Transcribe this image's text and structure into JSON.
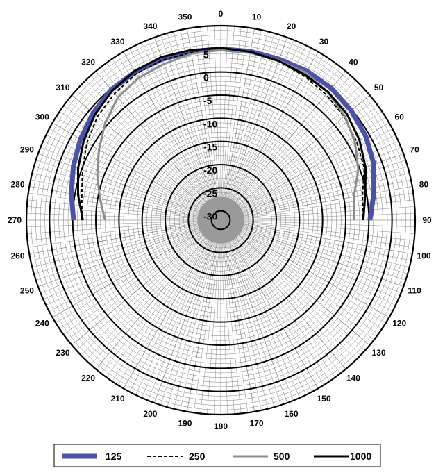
{
  "chart_data": {
    "type": "polar-line",
    "title": "",
    "angle_unit": "degrees",
    "angle_direction": "clockwise",
    "zero_at": "top",
    "angular_ticks": [
      "0",
      "10",
      "20",
      "30",
      "40",
      "50",
      "60",
      "70",
      "80",
      "90",
      "100",
      "110",
      "120",
      "130",
      "140",
      "150",
      "160",
      "170",
      "180",
      "190",
      "200",
      "210",
      "220",
      "230",
      "240",
      "250",
      "260",
      "270",
      "280",
      "290",
      "300",
      "310",
      "320",
      "330",
      "340",
      "350"
    ],
    "radial_ticks": [
      "5",
      "0",
      "-5",
      "-10",
      "-15",
      "-20",
      "-25",
      "-30"
    ],
    "radial_range": [
      -32,
      10
    ],
    "angular_grid_step": 2,
    "radial_grid_step": 1,
    "legend_position": "bottom",
    "series": [
      {
        "name": "125",
        "color": "#4c52a8",
        "style": "thick",
        "points": [
          [
            270,
            -0.2
          ],
          [
            280,
            0.8
          ],
          [
            290,
            1.9
          ],
          [
            300,
            3.0
          ],
          [
            310,
            4.0
          ],
          [
            320,
            4.8
          ],
          [
            330,
            5.0
          ],
          [
            340,
            5.0
          ],
          [
            350,
            5.0
          ],
          [
            0,
            5.0
          ],
          [
            10,
            5.0
          ],
          [
            20,
            5.0
          ],
          [
            30,
            5.2
          ],
          [
            40,
            5.2
          ],
          [
            50,
            4.8
          ],
          [
            60,
            4.2
          ],
          [
            70,
            3.2
          ],
          [
            80,
            1.6
          ],
          [
            90,
            0.2
          ]
        ]
      },
      {
        "name": "250",
        "color": "#000000",
        "style": "dashed",
        "points": [
          [
            270,
            -2.0
          ],
          [
            280,
            -1.5
          ],
          [
            290,
            -0.2
          ],
          [
            300,
            1.4
          ],
          [
            310,
            2.8
          ],
          [
            320,
            3.7
          ],
          [
            330,
            4.5
          ],
          [
            340,
            4.8
          ],
          [
            350,
            4.8
          ],
          [
            0,
            4.7
          ],
          [
            10,
            4.7
          ],
          [
            20,
            4.5
          ],
          [
            30,
            4.0
          ],
          [
            40,
            3.4
          ],
          [
            50,
            2.8
          ],
          [
            60,
            1.9
          ],
          [
            70,
            1.0
          ],
          [
            80,
            -0.9
          ],
          [
            90,
            -1.3
          ]
        ]
      },
      {
        "name": "500",
        "color": "#8c8c8c",
        "style": "solid",
        "points": [
          [
            270,
            -7.0
          ],
          [
            280,
            -5.5
          ],
          [
            290,
            -3.6
          ],
          [
            300,
            -1.6
          ],
          [
            310,
            0.6
          ],
          [
            320,
            2.6
          ],
          [
            330,
            3.5
          ],
          [
            340,
            3.9
          ],
          [
            350,
            4.5
          ],
          [
            0,
            4.8
          ],
          [
            10,
            4.7
          ],
          [
            20,
            4.7
          ],
          [
            30,
            4.8
          ],
          [
            40,
            4.0
          ],
          [
            50,
            3.0
          ],
          [
            60,
            1.5
          ],
          [
            70,
            -0.4
          ],
          [
            80,
            -2.8
          ],
          [
            90,
            -3.2
          ]
        ]
      },
      {
        "name": "1000",
        "color": "#000000",
        "style": "solid",
        "points": [
          [
            270,
            -2.2
          ],
          [
            280,
            -0.7
          ],
          [
            290,
            0.8
          ],
          [
            300,
            2.2
          ],
          [
            310,
            3.5
          ],
          [
            320,
            4.5
          ],
          [
            330,
            5.2
          ],
          [
            340,
            5.5
          ],
          [
            350,
            5.3
          ],
          [
            0,
            5.2
          ],
          [
            10,
            4.9
          ],
          [
            20,
            4.6
          ],
          [
            30,
            4.3
          ],
          [
            40,
            4.1
          ],
          [
            50,
            3.6
          ],
          [
            60,
            2.6
          ],
          [
            70,
            1.3
          ],
          [
            80,
            -0.3
          ],
          [
            90,
            -1.2
          ]
        ]
      }
    ]
  }
}
